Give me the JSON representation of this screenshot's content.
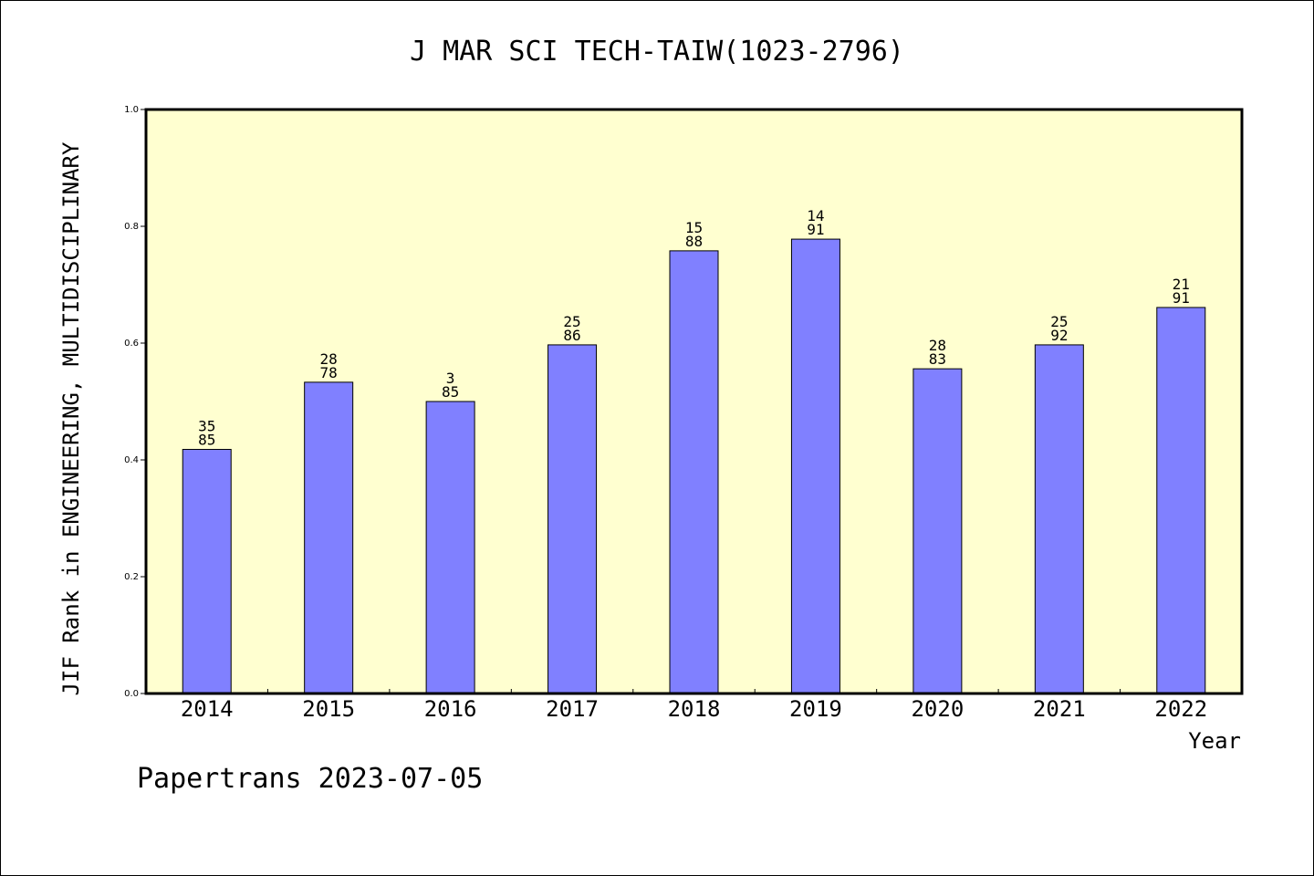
{
  "chart_data": {
    "type": "bar",
    "title": "J MAR SCI TECH-TAIW(1023-2796)",
    "xlabel": "Year",
    "ylabel": "JIF Rank in ENGINEERING, MULTIDISCIPLINARY",
    "ylim": [
      0,
      1.0
    ],
    "yticks": [
      "0.0",
      "0.2",
      "0.4",
      "0.6",
      "0.8",
      "1.0"
    ],
    "grid": false,
    "categories": [
      "2014",
      "2015",
      "2016",
      "2017",
      "2018",
      "2019",
      "2020",
      "2021",
      "2022"
    ],
    "values": [
      0.418,
      0.533,
      0.5,
      0.597,
      0.758,
      0.778,
      0.556,
      0.597,
      0.661
    ],
    "rank_labels": [
      {
        "rank": "35",
        "total": "85"
      },
      {
        "rank": "28",
        "total": "78"
      },
      {
        "rank": "3",
        "total": "85"
      },
      {
        "rank": "25",
        "total": "86"
      },
      {
        "rank": "15",
        "total": "88"
      },
      {
        "rank": "14",
        "total": "91"
      },
      {
        "rank": "28",
        "total": "83"
      },
      {
        "rank": "25",
        "total": "92"
      },
      {
        "rank": "21",
        "total": "91"
      }
    ],
    "colors": {
      "bar": "#8080ff",
      "plot_background": "#ffffd0",
      "axis": "#000000"
    }
  },
  "footer": {
    "credit": "Papertrans 2023-07-05"
  }
}
